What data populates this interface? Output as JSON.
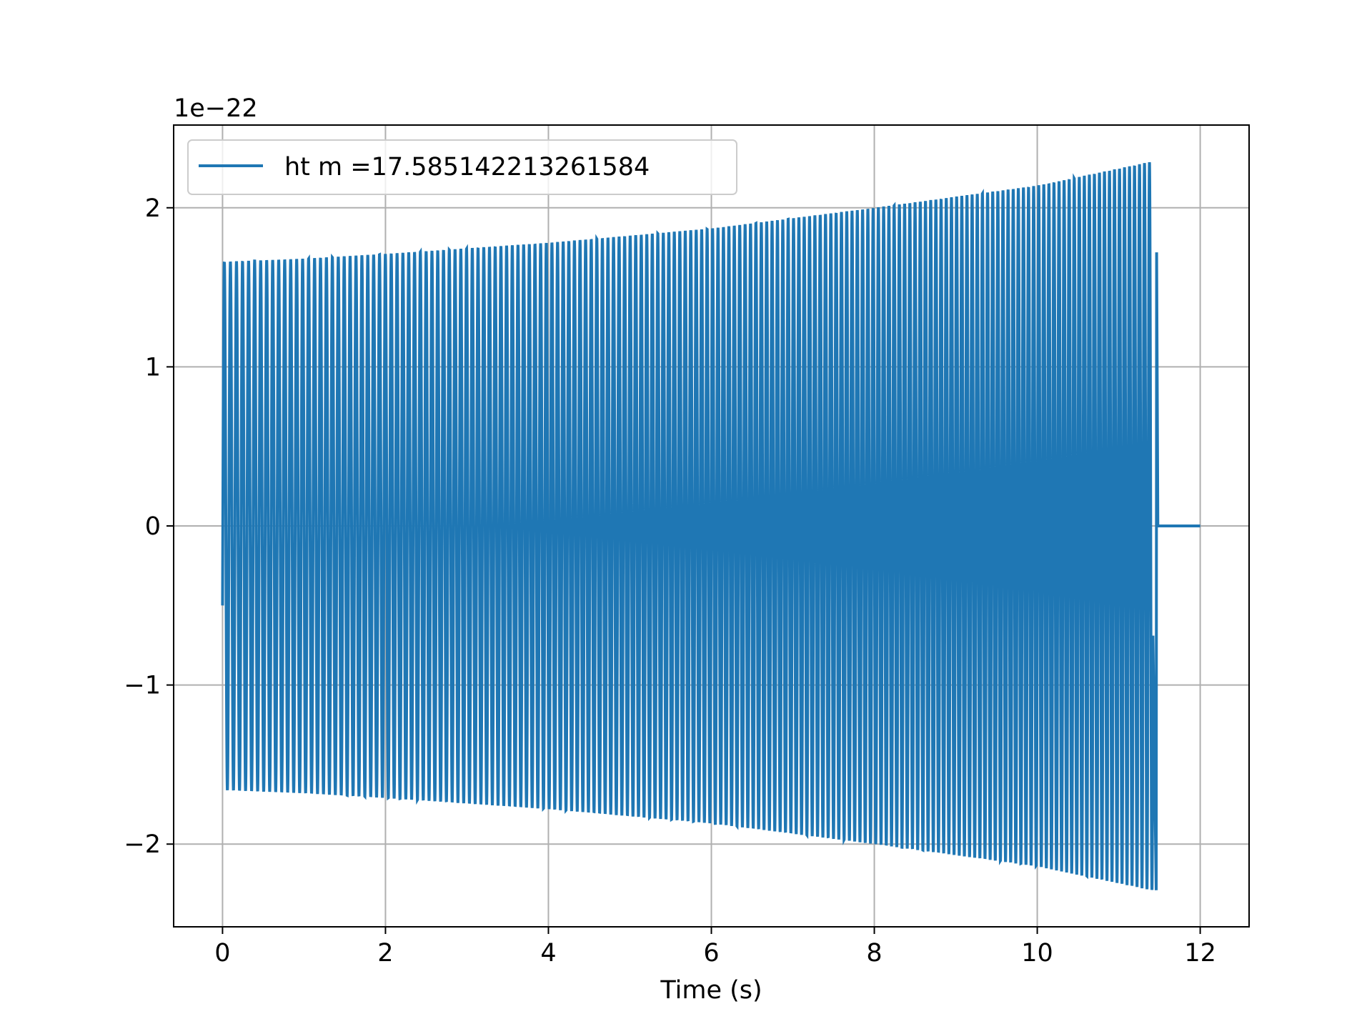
{
  "chart_data": {
    "type": "line",
    "title": "",
    "xlabel": "Time (s)",
    "ylabel": "",
    "xlim": [
      -0.6,
      12.6
    ],
    "ylim": [
      -2.52,
      2.52
    ],
    "x_ticks": [
      0,
      2,
      4,
      6,
      8,
      10,
      12
    ],
    "x_tick_labels": [
      "0",
      "2",
      "4",
      "6",
      "8",
      "10",
      "12"
    ],
    "y_ticks": [
      -2,
      -1,
      0,
      1,
      2
    ],
    "y_tick_labels": [
      "−2",
      "−1",
      "0",
      "1",
      "2"
    ],
    "y_offset_label": "1e−22",
    "grid": true,
    "legend_position": "upper-left",
    "series": [
      {
        "name": "ht m =17.585142213261584",
        "color": "#1f77b4",
        "signal": {
          "t_start": 0.0,
          "t_merger": 11.42,
          "t_end": 12.0,
          "start_value": -0.5,
          "envelope": [
            {
              "t": 0.0,
              "amp": 1.66
            },
            {
              "t": 1.0,
              "amp": 1.68
            },
            {
              "t": 2.0,
              "amp": 1.71
            },
            {
              "t": 4.0,
              "amp": 1.78
            },
            {
              "t": 6.0,
              "amp": 1.87
            },
            {
              "t": 8.0,
              "amp": 2.0
            },
            {
              "t": 10.0,
              "amp": 2.14
            },
            {
              "t": 11.4,
              "amp": 2.29
            }
          ],
          "final_peak": 1.72,
          "post_merger_value": 0.0
        }
      }
    ]
  }
}
